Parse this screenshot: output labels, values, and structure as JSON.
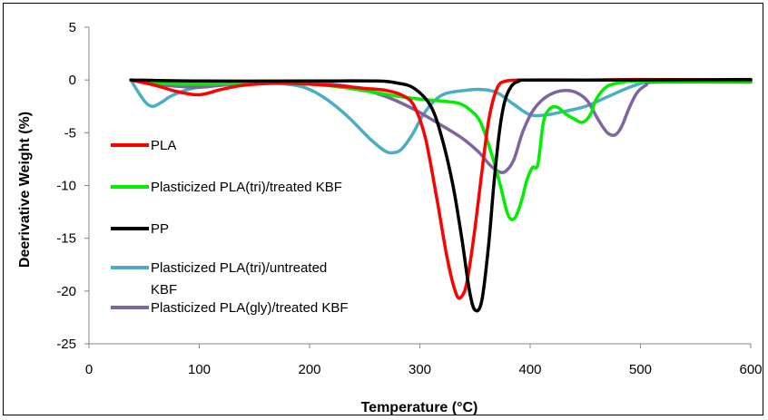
{
  "chart_data": {
    "type": "line",
    "title": "",
    "xlabel": "Temperature (°C)",
    "ylabel": "Deerivative Weight (%)",
    "xlim": [
      0,
      600
    ],
    "ylim": [
      -25,
      5
    ],
    "x_ticks": [
      "0",
      "100",
      "200",
      "300",
      "400",
      "500",
      "600"
    ],
    "y_ticks": [
      "5",
      "0",
      "-5",
      "-10",
      "-15",
      "-20",
      "-25"
    ],
    "x_tick_values": [
      0,
      100,
      200,
      300,
      400,
      500,
      600
    ],
    "y_tick_values": [
      5,
      0,
      -5,
      -10,
      -15,
      -20,
      -25
    ],
    "grid": false,
    "legend_position": "left",
    "series": [
      {
        "name": "PLA",
        "color": "#ff0000",
        "points": [
          [
            38,
            0
          ],
          [
            60,
            -0.5
          ],
          [
            80,
            -1.1
          ],
          [
            100,
            -1.4
          ],
          [
            120,
            -0.9
          ],
          [
            140,
            -0.5
          ],
          [
            170,
            -0.3
          ],
          [
            200,
            -0.4
          ],
          [
            230,
            -0.6
          ],
          [
            250,
            -0.8
          ],
          [
            270,
            -1.0
          ],
          [
            285,
            -1.5
          ],
          [
            295,
            -2.5
          ],
          [
            305,
            -5.5
          ],
          [
            315,
            -11
          ],
          [
            325,
            -17
          ],
          [
            333,
            -20.3
          ],
          [
            338,
            -20.5
          ],
          [
            343,
            -19
          ],
          [
            350,
            -14
          ],
          [
            357,
            -8
          ],
          [
            363,
            -3.5
          ],
          [
            370,
            -0.8
          ],
          [
            378,
            -0.1
          ],
          [
            400,
            0
          ],
          [
            450,
            0
          ],
          [
            500,
            0.05
          ],
          [
            600,
            0
          ]
        ]
      },
      {
        "name": "Plasticized PLA(tri)/treated KBF",
        "color": "#00ee00",
        "points": [
          [
            38,
            0
          ],
          [
            60,
            -0.3
          ],
          [
            100,
            -0.4
          ],
          [
            150,
            -0.3
          ],
          [
            200,
            -0.4
          ],
          [
            230,
            -0.7
          ],
          [
            260,
            -1.2
          ],
          [
            290,
            -1.7
          ],
          [
            320,
            -2.0
          ],
          [
            335,
            -2.2
          ],
          [
            345,
            -2.8
          ],
          [
            355,
            -4
          ],
          [
            365,
            -7
          ],
          [
            373,
            -10
          ],
          [
            380,
            -12.8
          ],
          [
            386,
            -13.1
          ],
          [
            392,
            -11.5
          ],
          [
            397,
            -9.5
          ],
          [
            402,
            -8.3
          ],
          [
            407,
            -8.0
          ],
          [
            412,
            -4.0
          ],
          [
            418,
            -2.7
          ],
          [
            425,
            -2.6
          ],
          [
            432,
            -3.2
          ],
          [
            440,
            -3.7
          ],
          [
            448,
            -4.0
          ],
          [
            455,
            -3.2
          ],
          [
            460,
            -1.8
          ],
          [
            470,
            -0.6
          ],
          [
            485,
            -0.2
          ],
          [
            500,
            -0.1
          ],
          [
            600,
            -0.1
          ]
        ]
      },
      {
        "name": "PP",
        "color": "#000000",
        "points": [
          [
            38,
            0
          ],
          [
            100,
            -0.1
          ],
          [
            200,
            -0.1
          ],
          [
            260,
            -0.1
          ],
          [
            280,
            -0.3
          ],
          [
            295,
            -0.8
          ],
          [
            310,
            -2.5
          ],
          [
            320,
            -5.5
          ],
          [
            330,
            -10
          ],
          [
            338,
            -15
          ],
          [
            345,
            -20
          ],
          [
            350,
            -21.8
          ],
          [
            356,
            -21
          ],
          [
            362,
            -16
          ],
          [
            367,
            -10
          ],
          [
            372,
            -5
          ],
          [
            377,
            -2
          ],
          [
            383,
            -0.6
          ],
          [
            390,
            -0.1
          ],
          [
            400,
            0
          ],
          [
            500,
            0
          ],
          [
            600,
            0.05
          ]
        ]
      },
      {
        "name": "Plasticized PLA(tri)/untreated KBF",
        "color": "#4bacc6",
        "points": [
          [
            38,
            0
          ],
          [
            45,
            -1.2
          ],
          [
            52,
            -2.2
          ],
          [
            58,
            -2.5
          ],
          [
            66,
            -2.1
          ],
          [
            75,
            -1.5
          ],
          [
            90,
            -0.9
          ],
          [
            110,
            -0.5
          ],
          [
            140,
            -0.2
          ],
          [
            170,
            -0.3
          ],
          [
            195,
            -0.7
          ],
          [
            215,
            -1.8
          ],
          [
            235,
            -3.5
          ],
          [
            255,
            -5.6
          ],
          [
            268,
            -6.7
          ],
          [
            275,
            -6.9
          ],
          [
            283,
            -6.6
          ],
          [
            293,
            -5.2
          ],
          [
            303,
            -3.3
          ],
          [
            313,
            -2.0
          ],
          [
            323,
            -1.3
          ],
          [
            340,
            -1.0
          ],
          [
            355,
            -0.9
          ],
          [
            370,
            -1.2
          ],
          [
            385,
            -2.3
          ],
          [
            400,
            -3.3
          ],
          [
            415,
            -3.3
          ],
          [
            430,
            -3.0
          ],
          [
            450,
            -2.5
          ],
          [
            470,
            -1.6
          ],
          [
            490,
            -0.7
          ],
          [
            505,
            -0.2
          ],
          [
            520,
            -0.1
          ],
          [
            600,
            -0.1
          ]
        ]
      },
      {
        "name": "Plasticized PLA(gly)/treated KBF",
        "color": "#8064a2",
        "points": [
          [
            38,
            0
          ],
          [
            60,
            -0.4
          ],
          [
            80,
            -0.6
          ],
          [
            100,
            -0.7
          ],
          [
            120,
            -0.5
          ],
          [
            150,
            -0.3
          ],
          [
            180,
            -0.2
          ],
          [
            210,
            -0.3
          ],
          [
            240,
            -0.7
          ],
          [
            270,
            -1.6
          ],
          [
            295,
            -2.8
          ],
          [
            318,
            -4.2
          ],
          [
            338,
            -5.5
          ],
          [
            353,
            -6.8
          ],
          [
            363,
            -8.0
          ],
          [
            370,
            -8.6
          ],
          [
            377,
            -8.7
          ],
          [
            385,
            -7.6
          ],
          [
            393,
            -5.0
          ],
          [
            402,
            -3.0
          ],
          [
            412,
            -1.8
          ],
          [
            422,
            -1.2
          ],
          [
            432,
            -1.0
          ],
          [
            442,
            -1.2
          ],
          [
            452,
            -2.0
          ],
          [
            462,
            -3.8
          ],
          [
            470,
            -5.0
          ],
          [
            477,
            -5.2
          ],
          [
            483,
            -4.4
          ],
          [
            490,
            -2.6
          ],
          [
            497,
            -1.2
          ],
          [
            505,
            -0.5
          ],
          [
            515,
            -0.2
          ],
          [
            600,
            -0.2
          ]
        ]
      }
    ]
  }
}
